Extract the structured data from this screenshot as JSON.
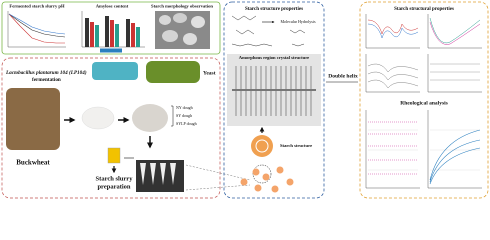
{
  "left_panel": {
    "charts": [
      {
        "title": "Fermented starch slurry pH"
      },
      {
        "title": "Amylose content"
      },
      {
        "title": "Starch morphology observation"
      }
    ],
    "fermentation_label": [
      "Lactobacillus plantarum 104 (LP104)",
      "fermentation"
    ],
    "yeast_label": "Yeast",
    "raw_material": "Buckwheat",
    "doughs": [
      "NY dough",
      "SY dough",
      "SYLP dough"
    ],
    "process": [
      "Starch slurry",
      "preparation"
    ]
  },
  "middle_panel": {
    "title": "Starch structure properties",
    "hydrolysis": "Molecular Hydrolysis",
    "crystal": "Amorphous region crystal structure",
    "structure": "Starch structure"
  },
  "right_panel": {
    "double_helix": "Double helix",
    "title": "Starch structural properties",
    "rheology": "Rheological analysis"
  }
}
